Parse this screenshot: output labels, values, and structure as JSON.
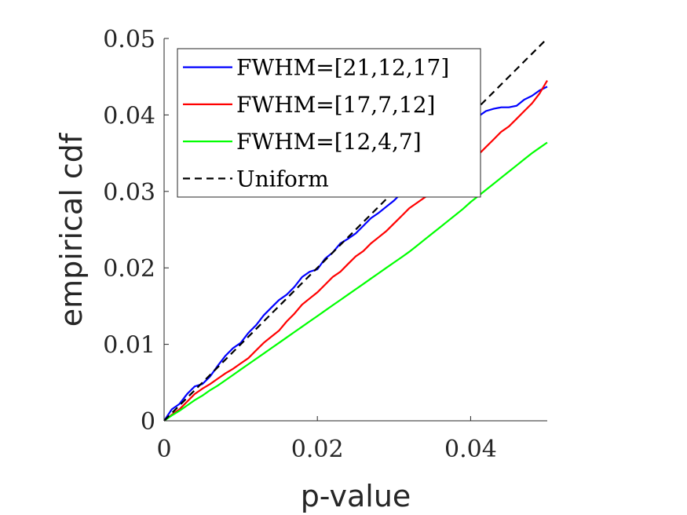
{
  "chart_data": {
    "type": "line",
    "title": "",
    "xlabel": "p-value",
    "ylabel": "empirical cdf",
    "xlim": [
      0,
      0.05
    ],
    "ylim": [
      0,
      0.05
    ],
    "xticks": [
      0,
      0.02,
      0.04
    ],
    "xtick_labels": [
      "0",
      "0.02",
      "0.04"
    ],
    "yticks": [
      0,
      0.01,
      0.02,
      0.03,
      0.04,
      0.05
    ],
    "ytick_labels": [
      "0",
      "0.01",
      "0.02",
      "0.03",
      "0.04",
      "0.05"
    ],
    "grid": false,
    "legend_position": "top-left",
    "series": [
      {
        "name": "FWHM=[21,12,17]",
        "color": "#0000ff",
        "style": "solid",
        "x": [
          0,
          0.001,
          0.002,
          0.003,
          0.004,
          0.005,
          0.006,
          0.007,
          0.008,
          0.009,
          0.01,
          0.011,
          0.012,
          0.013,
          0.014,
          0.015,
          0.016,
          0.017,
          0.018,
          0.019,
          0.02,
          0.021,
          0.022,
          0.023,
          0.024,
          0.025,
          0.026,
          0.027,
          0.028,
          0.029,
          0.03,
          0.031,
          0.032,
          0.033,
          0.034,
          0.035,
          0.036,
          0.037,
          0.038,
          0.039,
          0.04,
          0.041,
          0.042,
          0.043,
          0.044,
          0.045,
          0.046,
          0.047,
          0.048,
          0.049,
          0.05
        ],
        "y": [
          0,
          0.0015,
          0.0022,
          0.0035,
          0.0045,
          0.0048,
          0.0058,
          0.0072,
          0.0085,
          0.0095,
          0.0102,
          0.0115,
          0.0125,
          0.0138,
          0.0148,
          0.0158,
          0.0165,
          0.0175,
          0.0188,
          0.0195,
          0.0198,
          0.0212,
          0.022,
          0.0232,
          0.0238,
          0.0245,
          0.0255,
          0.0265,
          0.0272,
          0.028,
          0.0288,
          0.0298,
          0.0305,
          0.0312,
          0.0322,
          0.033,
          0.0342,
          0.0355,
          0.0368,
          0.0378,
          0.039,
          0.0398,
          0.0405,
          0.0408,
          0.041,
          0.041,
          0.0412,
          0.042,
          0.0425,
          0.0432,
          0.0437
        ]
      },
      {
        "name": "FWHM=[17,7,12]",
        "color": "#ff0000",
        "style": "solid",
        "x": [
          0,
          0.001,
          0.002,
          0.003,
          0.004,
          0.005,
          0.006,
          0.007,
          0.008,
          0.009,
          0.01,
          0.011,
          0.012,
          0.013,
          0.014,
          0.015,
          0.016,
          0.017,
          0.018,
          0.019,
          0.02,
          0.021,
          0.022,
          0.023,
          0.024,
          0.025,
          0.026,
          0.027,
          0.028,
          0.029,
          0.03,
          0.031,
          0.032,
          0.033,
          0.034,
          0.035,
          0.036,
          0.037,
          0.038,
          0.039,
          0.04,
          0.041,
          0.042,
          0.043,
          0.044,
          0.045,
          0.046,
          0.047,
          0.048,
          0.049,
          0.05
        ],
        "y": [
          0,
          0.0008,
          0.0015,
          0.0025,
          0.0035,
          0.0042,
          0.0048,
          0.0055,
          0.0062,
          0.0068,
          0.0075,
          0.0082,
          0.0092,
          0.0102,
          0.011,
          0.0118,
          0.013,
          0.014,
          0.0152,
          0.016,
          0.0168,
          0.0178,
          0.0188,
          0.0195,
          0.0205,
          0.0215,
          0.0222,
          0.0232,
          0.024,
          0.0248,
          0.0258,
          0.0268,
          0.0278,
          0.0285,
          0.0292,
          0.0298,
          0.0305,
          0.0312,
          0.0322,
          0.033,
          0.034,
          0.0348,
          0.0358,
          0.0368,
          0.0378,
          0.0385,
          0.0395,
          0.0405,
          0.0415,
          0.0428,
          0.0445
        ]
      },
      {
        "name": "FWHM=[12,4,7]",
        "color": "#00ff00",
        "style": "solid",
        "x": [
          0,
          0.001,
          0.002,
          0.003,
          0.004,
          0.005,
          0.006,
          0.007,
          0.008,
          0.009,
          0.01,
          0.011,
          0.012,
          0.013,
          0.014,
          0.015,
          0.016,
          0.017,
          0.018,
          0.019,
          0.02,
          0.021,
          0.022,
          0.023,
          0.024,
          0.025,
          0.026,
          0.027,
          0.028,
          0.029,
          0.03,
          0.031,
          0.032,
          0.033,
          0.034,
          0.035,
          0.036,
          0.037,
          0.038,
          0.039,
          0.04,
          0.041,
          0.042,
          0.043,
          0.044,
          0.045,
          0.046,
          0.047,
          0.048,
          0.049,
          0.05
        ],
        "y": [
          0,
          0.0007,
          0.0013,
          0.002,
          0.0027,
          0.0033,
          0.004,
          0.0046,
          0.0053,
          0.006,
          0.0067,
          0.0074,
          0.0081,
          0.0088,
          0.0095,
          0.0102,
          0.0109,
          0.0116,
          0.0123,
          0.013,
          0.0137,
          0.0144,
          0.0151,
          0.0158,
          0.0165,
          0.0172,
          0.0179,
          0.0186,
          0.0193,
          0.02,
          0.0207,
          0.0214,
          0.0221,
          0.0229,
          0.0237,
          0.0245,
          0.0253,
          0.0261,
          0.0269,
          0.0277,
          0.0286,
          0.0294,
          0.0302,
          0.031,
          0.0318,
          0.0326,
          0.0334,
          0.0342,
          0.035,
          0.0357,
          0.0364
        ]
      },
      {
        "name": "Uniform",
        "color": "#000000",
        "style": "dashed",
        "x": [
          0,
          0.05
        ],
        "y": [
          0,
          0.05
        ]
      }
    ]
  }
}
